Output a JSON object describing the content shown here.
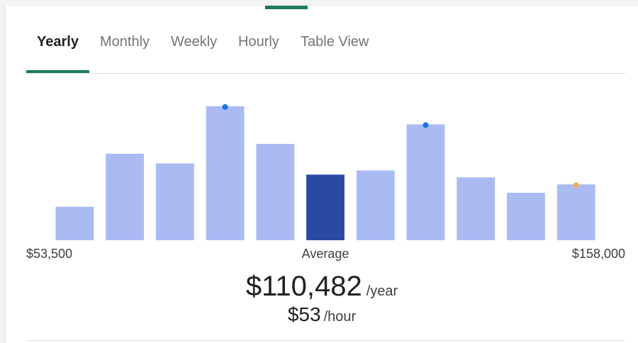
{
  "tabs": [
    {
      "label": "Yearly",
      "active": true
    },
    {
      "label": "Monthly",
      "active": false
    },
    {
      "label": "Weekly",
      "active": false
    },
    {
      "label": "Hourly",
      "active": false
    },
    {
      "label": "Table View",
      "active": false
    }
  ],
  "range": {
    "min_label": "$53,500",
    "max_label": "$158,000"
  },
  "average": {
    "label": "Average",
    "yearly_value": "$110,482",
    "yearly_unit": "/year",
    "hourly_value": "$53",
    "hourly_unit": "/hour"
  },
  "colors": {
    "accent": "#1e7b58",
    "bar": "#aabbf4",
    "bar_highlight": "#2a49a4",
    "marker_blue": "#1a73e8",
    "marker_orange": "#f6ad55"
  },
  "chart_data": {
    "type": "bar",
    "title": "",
    "xlabel": "",
    "ylabel": "",
    "x_range": [
      53500,
      158000
    ],
    "values": [
      24,
      62,
      55,
      96,
      69,
      47,
      50,
      83,
      45,
      34,
      40
    ],
    "ylim": [
      0,
      100
    ],
    "highlight_index": 5,
    "markers": [
      {
        "bar_index": 3,
        "color": "#1a73e8"
      },
      {
        "bar_index": 7,
        "color": "#1a73e8"
      },
      {
        "bar_index": 10,
        "color": "#f6ad55"
      }
    ]
  }
}
